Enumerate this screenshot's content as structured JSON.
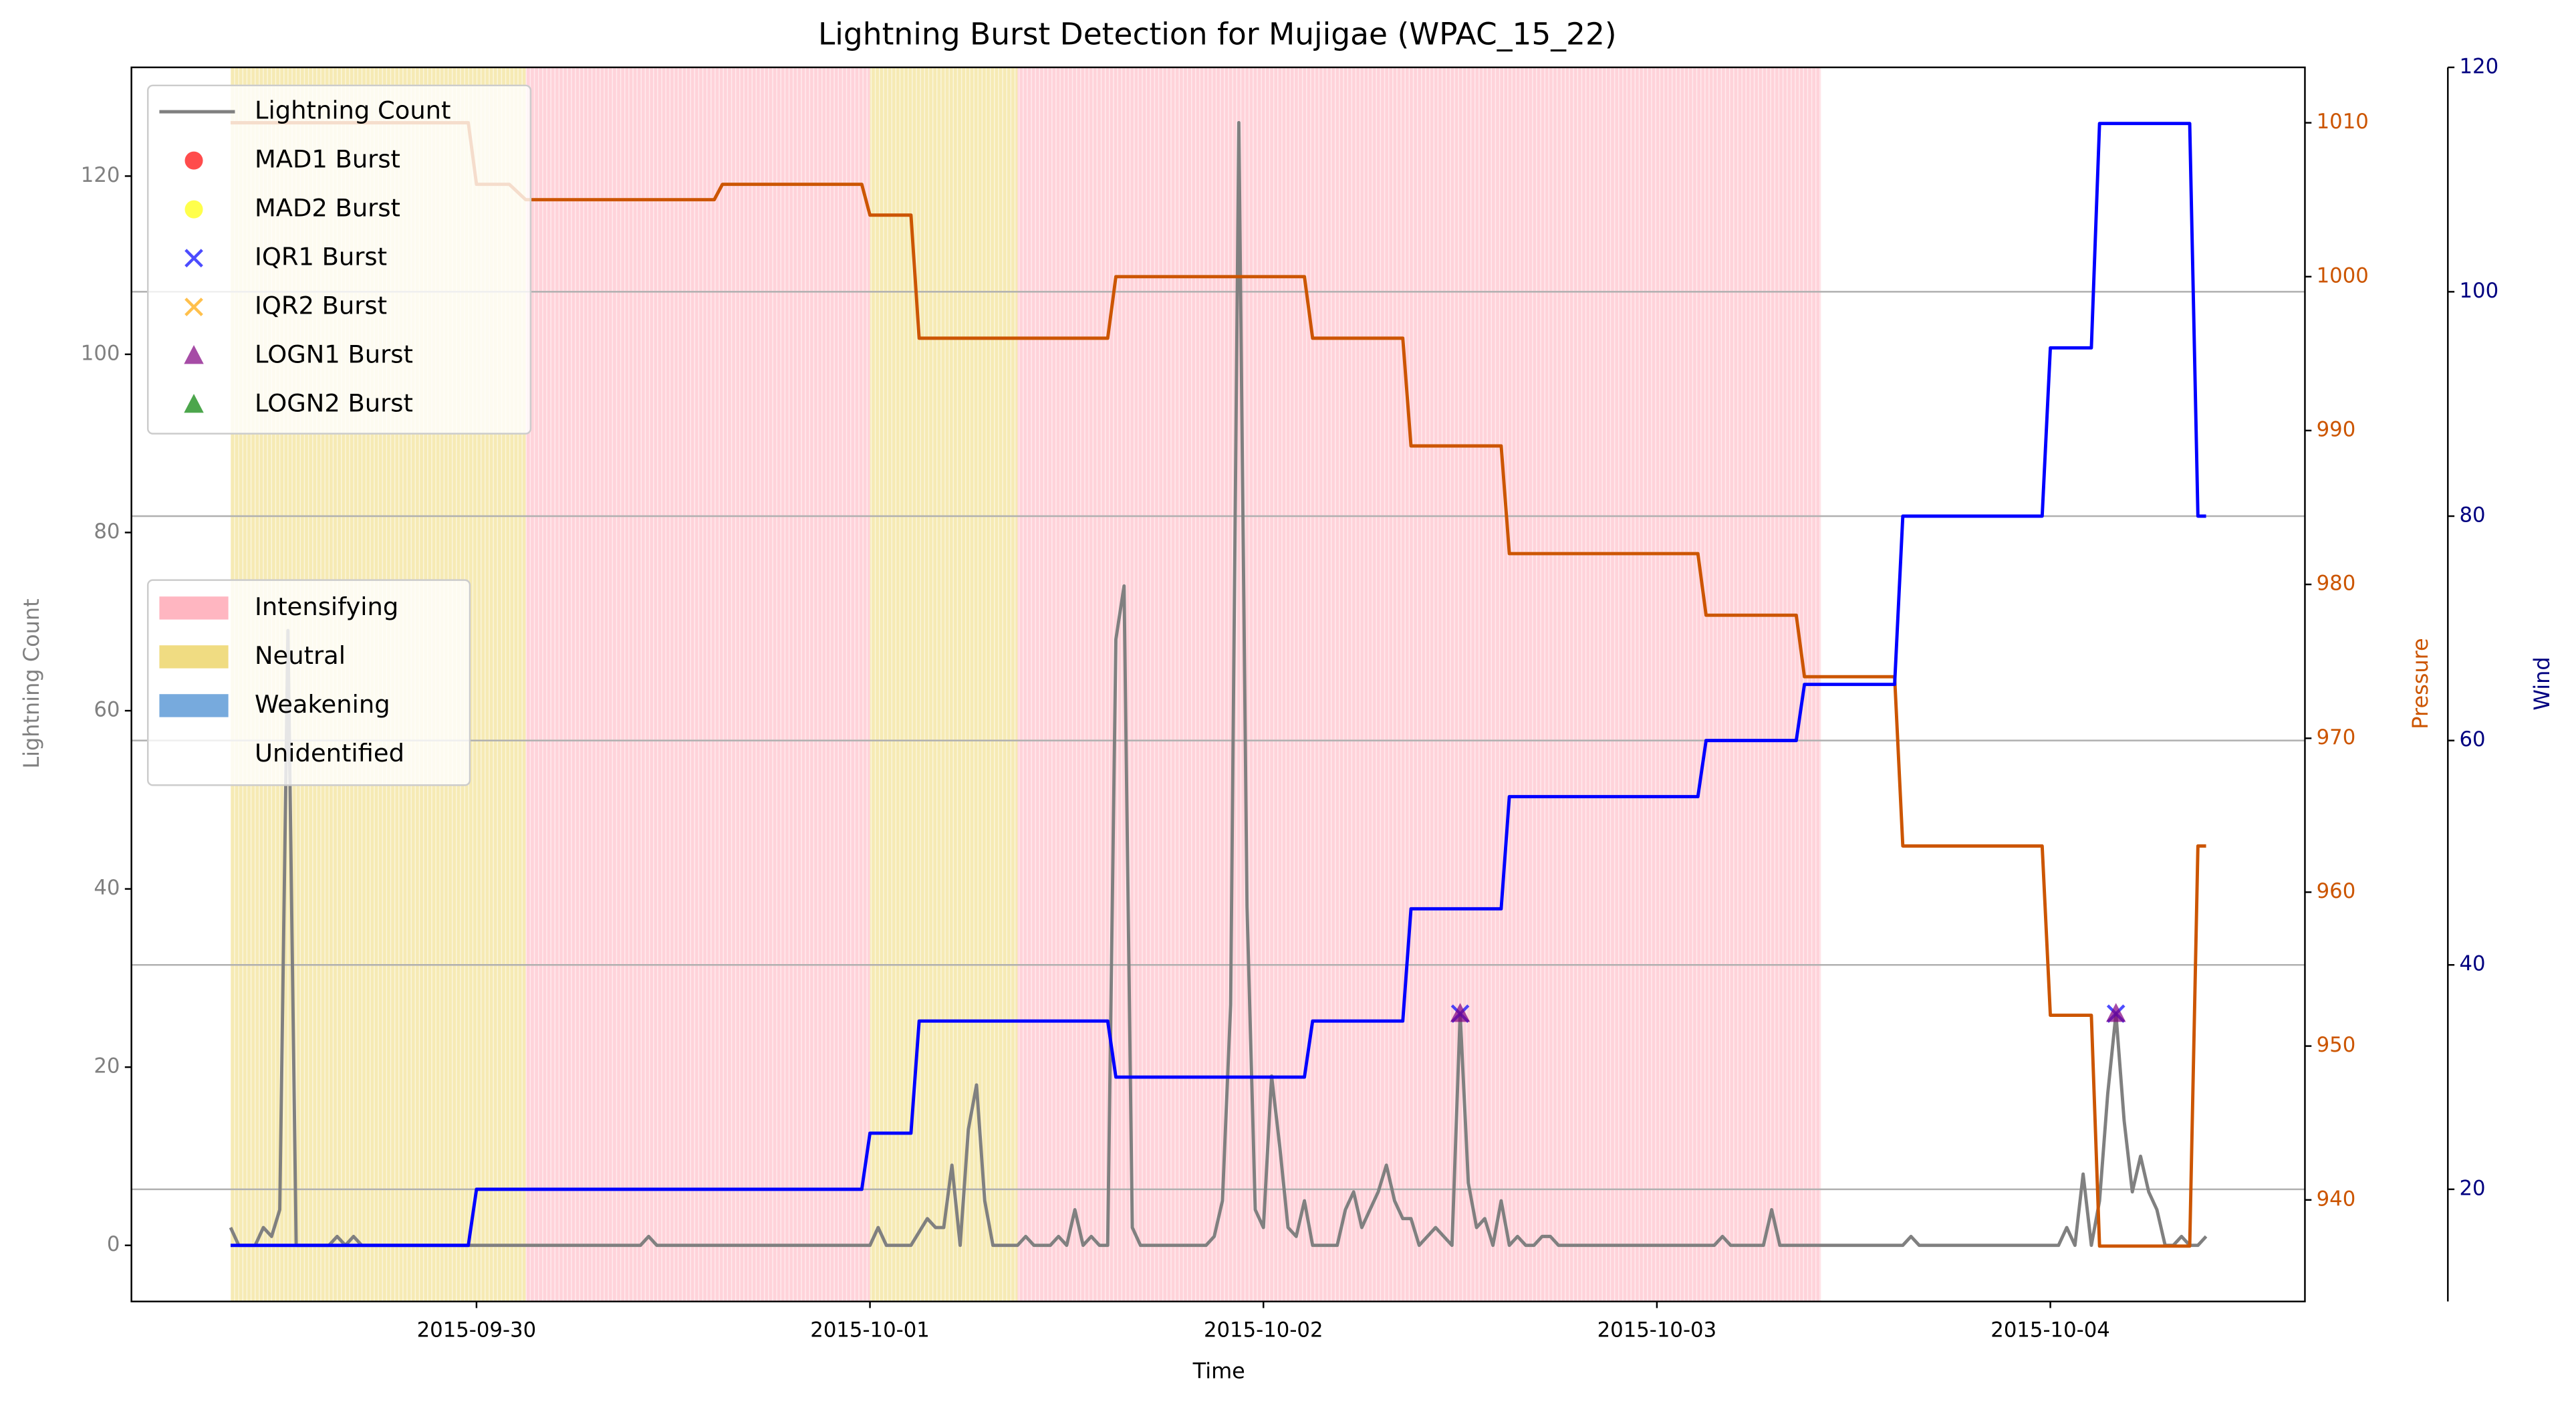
{
  "chart_data": {
    "type": "line",
    "title": "Lightning Burst Detection for Mujigae (WPAC_15_22)",
    "x_label": "Time",
    "y_label": "Lightning Count",
    "y2_label": "Pressure",
    "y3_label": "Wind",
    "xlim": [
      16707.123,
      16712.647
    ],
    "xticks": [
      {
        "value": 16708,
        "label": "2015-09-30"
      },
      {
        "value": 16709,
        "label": "2015-10-01"
      },
      {
        "value": 16710,
        "label": "2015-10-02"
      },
      {
        "value": 16711,
        "label": "2015-10-03"
      },
      {
        "value": 16712,
        "label": "2015-10-04"
      }
    ],
    "ylim": [
      -6.3,
      132.2
    ],
    "yticks": [
      0,
      20,
      40,
      60,
      80,
      100,
      120
    ],
    "y2lim": [
      933.4,
      1013.6
    ],
    "y2ticks": [
      940,
      950,
      960,
      970,
      980,
      990,
      1000,
      1010
    ],
    "y3lim": [
      10,
      120
    ],
    "y3ticks": [
      20,
      40,
      60,
      80,
      100,
      120
    ],
    "grid": "y3",
    "legend_loc": "upper left",
    "phase_legend_loc": "center left",
    "series": [
      {
        "name": "Lightning Count",
        "color": "#808080",
        "x": [
          16707.375,
          16707.3958,
          16707.4375,
          16707.4583,
          16707.4792,
          16707.5,
          16707.5208,
          16707.5417,
          16707.625,
          16707.6458,
          16707.6667,
          16707.6875,
          16707.7083,
          16708.4167,
          16708.4375,
          16708.4583,
          16709.0,
          16709.0208,
          16709.0417,
          16709.1042,
          16709.1458,
          16709.1667,
          16709.1875,
          16709.2083,
          16709.2292,
          16709.25,
          16709.2708,
          16709.2917,
          16709.3125,
          16709.375,
          16709.3958,
          16709.4167,
          16709.4583,
          16709.4792,
          16709.5,
          16709.5208,
          16709.5417,
          16709.5625,
          16709.5833,
          16709.6042,
          16709.625,
          16709.6458,
          16709.6667,
          16709.6875,
          16709.8542,
          16709.875,
          16709.8958,
          16709.9167,
          16709.9375,
          16709.9583,
          16709.9792,
          16710.0,
          16710.0208,
          16710.0417,
          16710.0625,
          16710.0833,
          16710.1042,
          16710.125,
          16710.1875,
          16710.2083,
          16710.2292,
          16710.25,
          16710.2708,
          16710.2917,
          16710.3125,
          16710.3333,
          16710.3542,
          16710.375,
          16710.3958,
          16710.4167,
          16710.4375,
          16710.4583,
          16710.4792,
          16710.5,
          16710.5208,
          16710.5417,
          16710.5625,
          16710.5833,
          16710.6042,
          16710.625,
          16710.6458,
          16710.6667,
          16710.6875,
          16710.7083,
          16710.7292,
          16710.75,
          16711.1458,
          16711.1667,
          16711.1875,
          16711.2708,
          16711.2917,
          16711.3125,
          16711.625,
          16711.6458,
          16711.6667,
          16712.0208,
          16712.0417,
          16712.0625,
          16712.0833,
          16712.1042,
          16712.125,
          16712.1458,
          16712.1667,
          16712.1875,
          16712.2083,
          16712.2292,
          16712.25,
          16712.2708,
          16712.2917,
          16712.3125,
          16712.3333,
          16712.3542,
          16712.375,
          16712.3958
        ],
        "values": [
          2,
          0,
          0,
          2,
          1,
          4,
          69,
          0,
          0,
          1,
          0,
          1,
          0,
          0,
          1,
          0,
          0,
          2,
          0,
          0,
          3,
          2,
          2,
          9,
          0,
          13,
          18,
          5,
          0,
          0,
          1,
          0,
          0,
          1,
          0,
          4,
          0,
          1,
          0,
          0,
          68,
          74,
          2,
          0,
          0,
          1,
          5,
          27,
          126,
          38,
          4,
          2,
          19,
          11,
          2,
          1,
          5,
          0,
          0,
          4,
          6,
          2,
          4,
          6,
          9,
          5,
          3,
          3,
          0,
          1,
          2,
          1,
          0,
          26,
          7,
          2,
          3,
          0,
          5,
          0,
          1,
          0,
          0,
          1,
          1,
          0,
          0,
          1,
          0,
          0,
          4,
          0,
          0,
          1,
          0,
          0,
          2,
          0,
          8,
          0,
          5,
          17,
          26,
          14,
          6,
          10,
          6,
          4,
          0,
          0,
          1,
          0,
          0,
          1
        ]
      },
      {
        "name": "Pressure",
        "color": "#cc5500",
        "axis": "y2",
        "x": [
          16707.375,
          16707.9792,
          16708.0,
          16708.0833,
          16708.125,
          16708.6042,
          16708.625,
          16708.9792,
          16709.0,
          16709.1042,
          16709.125,
          16709.6042,
          16709.625,
          16710.1042,
          16710.125,
          16710.3542,
          16710.375,
          16710.6042,
          16710.625,
          16711.1042,
          16711.125,
          16711.3542,
          16711.375,
          16711.6042,
          16711.625,
          16711.9792,
          16712.0,
          16712.1042,
          16712.125,
          16712.3542,
          16712.375,
          16712.3958
        ],
        "values": [
          1010,
          1010,
          1006,
          1006,
          1005,
          1005,
          1006,
          1006,
          1004,
          1004,
          996,
          996,
          1000,
          1000,
          996,
          996,
          989,
          989,
          982,
          982,
          978,
          978,
          974,
          974,
          963,
          963,
          952,
          952,
          937,
          937,
          963,
          963
        ]
      },
      {
        "name": "Wind",
        "color": "#0000ff",
        "axis": "y3",
        "x": [
          16707.375,
          16707.9792,
          16708.0,
          16708.9792,
          16709.0,
          16709.1042,
          16709.125,
          16709.6042,
          16709.625,
          16710.1042,
          16710.125,
          16710.3542,
          16710.375,
          16710.6042,
          16710.625,
          16711.1042,
          16711.125,
          16711.3542,
          16711.375,
          16711.6042,
          16711.625,
          16711.9792,
          16712.0,
          16712.1042,
          16712.125,
          16712.3542,
          16712.375,
          16712.3958
        ],
        "values": [
          15,
          15,
          20,
          20,
          25,
          25,
          35,
          35,
          30,
          30,
          35,
          35,
          45,
          45,
          55,
          55,
          60,
          60,
          65,
          65,
          80,
          80,
          95,
          95,
          115,
          115,
          80,
          80
        ]
      }
    ],
    "bursts": [
      {
        "name": "MAD1 Burst",
        "color": "#ff0000",
        "marker": "circle",
        "x": [],
        "values": []
      },
      {
        "name": "MAD2 Burst",
        "color": "#ffff00",
        "marker": "circle",
        "x": [],
        "values": []
      },
      {
        "name": "IQR1 Burst",
        "color": "#0000ff",
        "marker": "x",
        "x": [
          16710.5,
          16712.1667
        ],
        "values": [
          26,
          26
        ]
      },
      {
        "name": "IQR2 Burst",
        "color": "#ffa500",
        "marker": "x",
        "x": [],
        "values": []
      },
      {
        "name": "LOGN1 Burst",
        "color": "#800080",
        "marker": "triangle",
        "x": [
          16710.5,
          16712.1667
        ],
        "values": [
          26,
          26
        ]
      },
      {
        "name": "LOGN2 Burst",
        "color": "#008000",
        "marker": "triangle",
        "x": [],
        "values": []
      }
    ],
    "phases": [
      {
        "name": "Intensifying",
        "color": "#ffb6c1",
        "spans": [
          [
            16708.125,
            16709.0
          ],
          [
            16709.375,
            16711.4167
          ]
        ]
      },
      {
        "name": "Neutral",
        "color": "#f0dc82",
        "spans": [
          [
            16707.375,
            16708.125
          ],
          [
            16709.0,
            16709.375
          ]
        ]
      },
      {
        "name": "Weakening",
        "color": "#77aadd",
        "spans": []
      },
      {
        "name": "Unidentified",
        "color": "#ffffff",
        "spans": []
      }
    ]
  }
}
